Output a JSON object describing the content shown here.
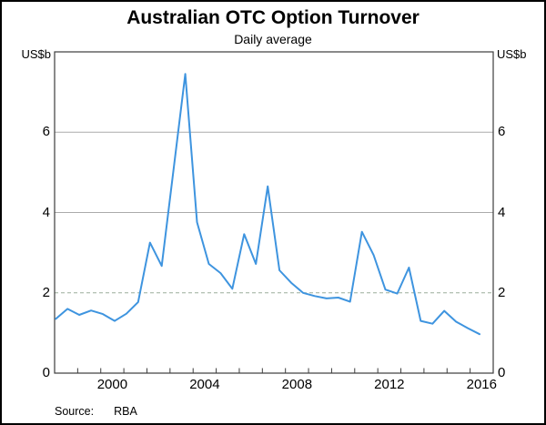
{
  "header": {
    "title": "Australian OTC Option Turnover",
    "subtitle": "Daily average"
  },
  "axes": {
    "unit_label": "US$b",
    "y_ticks": [
      0,
      2,
      4,
      6
    ],
    "y_tick_labels": [
      "0",
      "2",
      "4",
      "6"
    ],
    "ylim": [
      0,
      8
    ],
    "xlim": [
      1998,
      2017
    ],
    "x_minor_tick_years": [
      1999,
      2000,
      2001,
      2002,
      2003,
      2004,
      2005,
      2006,
      2007,
      2008,
      2009,
      2010,
      2011,
      2012,
      2013,
      2014,
      2015,
      2016
    ],
    "x_label_years": [
      2000,
      2004,
      2008,
      2012,
      2016
    ],
    "x_tick_labels": [
      "2000",
      "2004",
      "2008",
      "2012",
      "2016"
    ],
    "reference_line_y": 2,
    "grid_y_values": [
      4,
      6
    ]
  },
  "source": {
    "label": "Source:",
    "value": "RBA"
  },
  "colors": {
    "line": "#3E94DF",
    "grid": "#ABABAB",
    "reference": "#9CAD9C",
    "axis": "#3D3D3D",
    "text": "#000000"
  },
  "chart_data": {
    "type": "line",
    "title": "Australian OTC Option Turnover",
    "subtitle": "Daily average",
    "ylabel": "US$b",
    "ylim": [
      0,
      8
    ],
    "xlim": [
      1998,
      2017
    ],
    "grid": "horizontal at 4 and 6, dashed reference at 2",
    "legend": "none",
    "series_name": "Australian OTC option turnover, daily average (US$b)",
    "frequency": "semi-annual",
    "x": [
      1998.05,
      1998.56,
      1999.07,
      1999.58,
      2000.09,
      2000.6,
      2001.11,
      2001.62,
      2002.13,
      2002.64,
      2003.15,
      2003.66,
      2004.17,
      2004.68,
      2005.19,
      2005.7,
      2006.21,
      2006.72,
      2007.23,
      2007.74,
      2008.25,
      2008.76,
      2009.27,
      2009.78,
      2010.29,
      2010.8,
      2011.31,
      2011.82,
      2012.33,
      2012.84,
      2013.35,
      2013.86,
      2014.37,
      2014.88,
      2015.39,
      2015.9,
      2016.41
    ],
    "values": [
      1.35,
      1.6,
      1.45,
      1.56,
      1.47,
      1.3,
      1.48,
      1.77,
      3.25,
      2.67,
      5.05,
      7.45,
      3.76,
      2.72,
      2.49,
      2.1,
      3.46,
      2.72,
      4.65,
      2.56,
      2.25,
      2.0,
      1.92,
      1.86,
      1.88,
      1.78,
      3.52,
      2.94,
      2.08,
      1.98,
      2.63,
      1.3,
      1.23,
      1.55,
      1.28,
      1.12,
      0.97
    ]
  }
}
